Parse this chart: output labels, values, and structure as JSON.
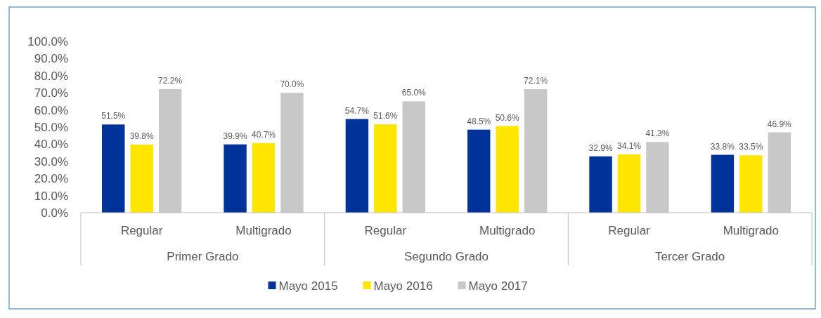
{
  "chart_data": {
    "type": "bar",
    "categories": [
      "Regular",
      "Multigrado",
      "Regular",
      "Multigrado",
      "Regular",
      "Multigrado"
    ],
    "annotations": [
      "Primer Grado",
      "Segundo Grado",
      "Tercer Grado"
    ],
    "series": [
      {
        "name": "Mayo 2015",
        "color": "#003399",
        "values": [
          51.5,
          39.9,
          54.7,
          48.5,
          32.9,
          33.8
        ],
        "value_labels": [
          "51.5%",
          "39.9%",
          "54.7%",
          "48.5%",
          "32.9%",
          "33.8%"
        ]
      },
      {
        "name": "Mayo 2016",
        "color": "#ffe600",
        "values": [
          39.8,
          40.7,
          51.6,
          50.6,
          34.1,
          33.5
        ],
        "value_labels": [
          "39.8%",
          "40.7%",
          "51.6%",
          "50.6%",
          "34.1%",
          "33.5%"
        ]
      },
      {
        "name": "Mayo 2017",
        "color": "#c8c8c8",
        "values": [
          72.2,
          70.0,
          65.0,
          72.1,
          41.3,
          46.9
        ],
        "value_labels": [
          "72.2%",
          "70.0%",
          "65.0%",
          "72.1%",
          "41.3%",
          "46.9%"
        ]
      }
    ],
    "ylim": [
      0,
      100
    ],
    "yticks": [
      {
        "value": 0,
        "label": "0.0%"
      },
      {
        "value": 10,
        "label": "10.0%"
      },
      {
        "value": 20,
        "label": "20.0%"
      },
      {
        "value": 30,
        "label": "30.0%"
      },
      {
        "value": 40,
        "label": "40.0%"
      },
      {
        "value": 50,
        "label": "50.0%"
      },
      {
        "value": 60,
        "label": "60.0%"
      },
      {
        "value": 70,
        "label": "70.0%"
      },
      {
        "value": 80,
        "label": "80.0%"
      },
      {
        "value": 90,
        "label": "90.0%"
      },
      {
        "value": 100,
        "label": "100.0%"
      }
    ],
    "grid": false,
    "legend": "bottom"
  }
}
